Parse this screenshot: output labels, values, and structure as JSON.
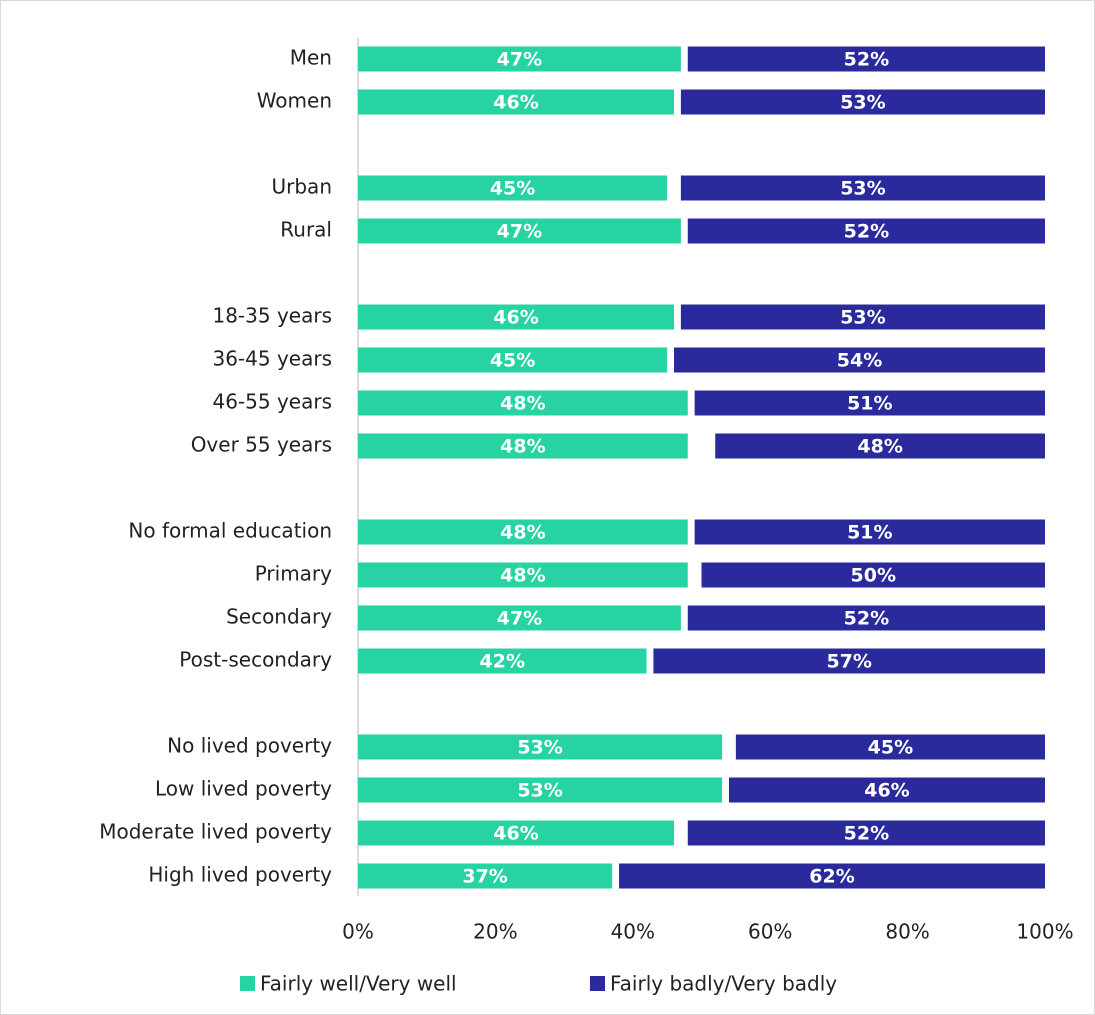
{
  "chart_data": {
    "type": "bar",
    "orientation": "horizontal",
    "categories": [
      "Men",
      "Women",
      null,
      "Urban",
      "Rural",
      null,
      "18-35 years",
      "36-45 years",
      "46-55 years",
      "Over 55 years",
      null,
      "No formal education",
      "Primary",
      "Secondary",
      "Post-secondary",
      null,
      "No lived poverty",
      "Low lived poverty",
      "Moderate lived poverty",
      "High lived poverty"
    ],
    "series": [
      {
        "name": "Fairly well/Very well",
        "color": "#27d3a2",
        "anchor": "start",
        "values": [
          47,
          46,
          null,
          45,
          47,
          null,
          46,
          45,
          48,
          48,
          null,
          48,
          48,
          47,
          42,
          null,
          53,
          53,
          46,
          37
        ],
        "value_labels": [
          "47%",
          "46%",
          null,
          "45%",
          "47%",
          null,
          "46%",
          "45%",
          "48%",
          "48%",
          null,
          "48%",
          "48%",
          "47%",
          "42%",
          null,
          "53%",
          "53%",
          "46%",
          "37%"
        ]
      },
      {
        "name": "Fairly badly/Very badly",
        "color": "#2a2a9c",
        "anchor": "end",
        "values": [
          52,
          53,
          null,
          53,
          52,
          null,
          53,
          54,
          51,
          48,
          null,
          51,
          50,
          52,
          57,
          null,
          45,
          46,
          52,
          62
        ],
        "value_labels": [
          "52%",
          "53%",
          null,
          "53%",
          "52%",
          null,
          "53%",
          "54%",
          "51%",
          "48%",
          null,
          "51%",
          "50%",
          "52%",
          "57%",
          null,
          "45%",
          "46%",
          "52%",
          "62%"
        ]
      }
    ],
    "xlim": [
      0,
      100
    ],
    "xticks": [
      {
        "value": 0,
        "label": "0%"
      },
      {
        "value": 20,
        "label": "20%"
      },
      {
        "value": 40,
        "label": "40%"
      },
      {
        "value": 60,
        "label": "60%"
      },
      {
        "value": 80,
        "label": "80%"
      },
      {
        "value": 100,
        "label": "100%"
      }
    ],
    "legend": "bottom"
  }
}
